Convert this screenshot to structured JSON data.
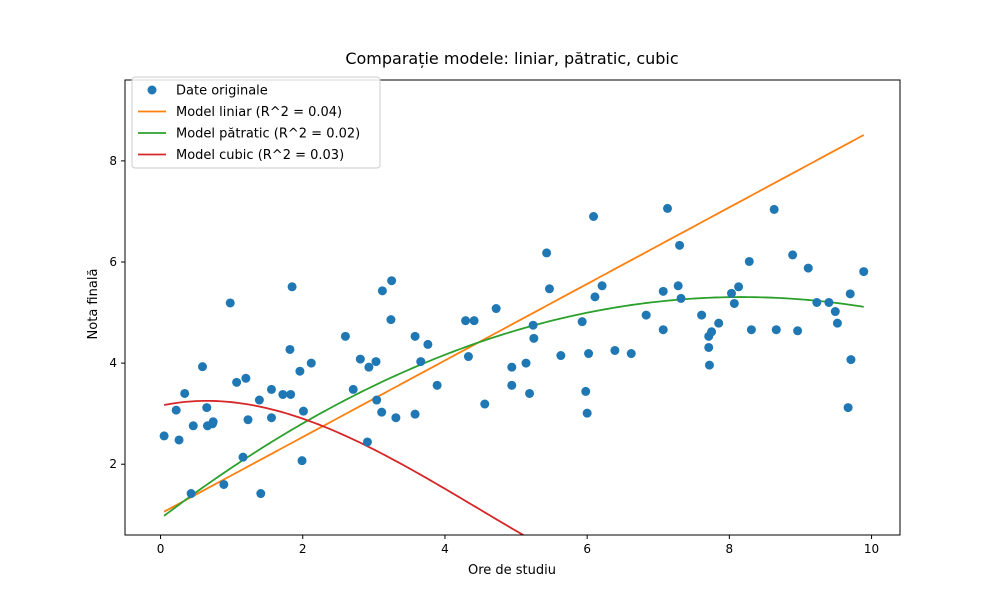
{
  "chart_data": {
    "type": "scatter",
    "title": "Comparație modele: liniar, pătratic, cubic",
    "xlabel": "Ore de studiu",
    "ylabel": "Nota finală",
    "xlim": [
      -0.5,
      10.4
    ],
    "ylim": [
      0.6,
      9.6
    ],
    "xticks": [
      0,
      2,
      4,
      6,
      8,
      10
    ],
    "yticks": [
      2,
      4,
      6,
      8
    ],
    "grid": false,
    "legend_position": "top-left",
    "series": [
      {
        "name": "Date originale",
        "type": "scatter",
        "color": "#1f77b4",
        "points": [
          [
            0.05,
            2.56
          ],
          [
            0.22,
            3.07
          ],
          [
            0.26,
            2.48
          ],
          [
            0.34,
            3.4
          ],
          [
            0.43,
            1.42
          ],
          [
            0.46,
            2.76
          ],
          [
            0.59,
            3.93
          ],
          [
            0.65,
            3.12
          ],
          [
            0.66,
            2.76
          ],
          [
            0.73,
            2.8
          ],
          [
            0.74,
            2.84
          ],
          [
            0.89,
            1.6
          ],
          [
            0.98,
            5.19
          ],
          [
            1.07,
            3.62
          ],
          [
            1.16,
            2.14
          ],
          [
            1.2,
            3.7
          ],
          [
            1.23,
            2.88
          ],
          [
            1.39,
            3.27
          ],
          [
            1.41,
            1.42
          ],
          [
            1.56,
            3.48
          ],
          [
            1.56,
            2.92
          ],
          [
            1.72,
            3.38
          ],
          [
            1.82,
            4.27
          ],
          [
            1.83,
            3.38
          ],
          [
            1.85,
            5.51
          ],
          [
            1.96,
            3.84
          ],
          [
            1.99,
            2.07
          ],
          [
            2.01,
            3.05
          ],
          [
            2.12,
            4.0
          ],
          [
            2.6,
            4.53
          ],
          [
            2.71,
            3.48
          ],
          [
            2.81,
            4.08
          ],
          [
            2.91,
            2.44
          ],
          [
            2.93,
            3.92
          ],
          [
            3.03,
            4.03
          ],
          [
            3.04,
            3.27
          ],
          [
            3.11,
            3.03
          ],
          [
            3.12,
            5.43
          ],
          [
            3.24,
            4.86
          ],
          [
            3.25,
            5.63
          ],
          [
            3.31,
            2.92
          ],
          [
            3.58,
            4.53
          ],
          [
            3.58,
            2.99
          ],
          [
            3.66,
            4.03
          ],
          [
            3.76,
            4.37
          ],
          [
            3.89,
            3.56
          ],
          [
            4.29,
            4.84
          ],
          [
            4.33,
            4.13
          ],
          [
            4.41,
            4.84
          ],
          [
            4.56,
            3.19
          ],
          [
            4.72,
            5.08
          ],
          [
            4.94,
            3.92
          ],
          [
            4.94,
            3.56
          ],
          [
            5.14,
            4.0
          ],
          [
            5.19,
            3.4
          ],
          [
            5.24,
            4.75
          ],
          [
            5.25,
            4.49
          ],
          [
            5.43,
            6.18
          ],
          [
            5.47,
            5.47
          ],
          [
            5.63,
            4.15
          ],
          [
            5.93,
            4.82
          ],
          [
            5.98,
            3.44
          ],
          [
            6.0,
            3.01
          ],
          [
            6.02,
            4.19
          ],
          [
            6.09,
            6.9
          ],
          [
            6.11,
            5.31
          ],
          [
            6.21,
            5.53
          ],
          [
            6.39,
            4.25
          ],
          [
            6.62,
            4.19
          ],
          [
            6.83,
            4.95
          ],
          [
            7.07,
            4.66
          ],
          [
            7.07,
            5.42
          ],
          [
            7.13,
            7.06
          ],
          [
            7.28,
            5.53
          ],
          [
            7.3,
            6.33
          ],
          [
            7.32,
            5.28
          ],
          [
            7.61,
            4.95
          ],
          [
            7.71,
            4.53
          ],
          [
            7.71,
            4.31
          ],
          [
            7.72,
            3.96
          ],
          [
            7.75,
            4.62
          ],
          [
            7.85,
            4.79
          ],
          [
            8.03,
            5.38
          ],
          [
            8.07,
            5.18
          ],
          [
            8.13,
            5.51
          ],
          [
            8.28,
            6.01
          ],
          [
            8.31,
            4.66
          ],
          [
            8.63,
            7.04
          ],
          [
            8.66,
            4.66
          ],
          [
            8.89,
            6.14
          ],
          [
            8.96,
            4.64
          ],
          [
            9.11,
            5.88
          ],
          [
            9.23,
            5.2
          ],
          [
            9.4,
            5.2
          ],
          [
            9.49,
            5.02
          ],
          [
            9.52,
            4.79
          ],
          [
            9.67,
            3.12
          ],
          [
            9.7,
            5.37
          ],
          [
            9.71,
            4.07
          ],
          [
            9.89,
            5.81
          ]
        ]
      },
      {
        "name": "Model liniar (R^2 = 0.04)",
        "type": "line",
        "color": "#ff7f0e",
        "fit": "linear",
        "coefficients": [
          1.0235,
          0.7572
        ],
        "x_range": [
          0.05,
          9.89
        ]
      },
      {
        "name": "Model pătratic (R^2 = 0.02)",
        "type": "line",
        "color": "#2ca02c",
        "fit": "quadratic",
        "coefficients": [
          0.9254,
          1.0722,
          -0.0656
        ],
        "x_range": [
          0.05,
          9.89
        ]
      },
      {
        "name": "Model cubic (R^2 = 0.03)",
        "type": "line",
        "color": "#d62728",
        "fit": "cubic",
        "coefficients": [
          3.1556,
          0.3088,
          -0.2562,
          0.0191
        ],
        "x_range": [
          0.05,
          9.89
        ]
      }
    ]
  }
}
